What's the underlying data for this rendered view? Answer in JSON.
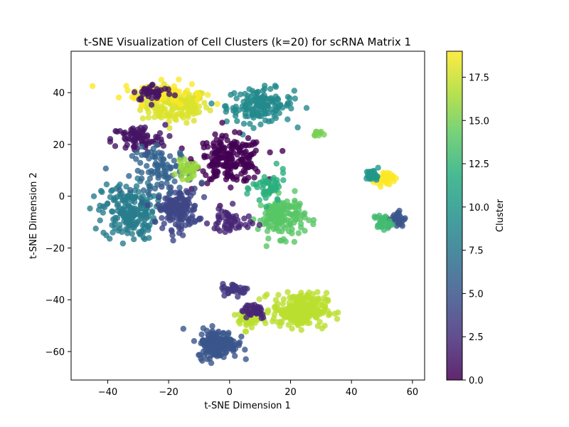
{
  "chart_data": {
    "type": "scatter",
    "title": "t-SNE Visualization of Cell Clusters (k=20) for scRNA Matrix 1",
    "xlabel": "t-SNE Dimension 1",
    "ylabel": "t-SNE Dimension 2",
    "xlim": [
      -52,
      64
    ],
    "ylim": [
      -71,
      56
    ],
    "xticks": [
      -40,
      -20,
      0,
      20,
      40,
      60
    ],
    "yticks": [
      -60,
      -40,
      -20,
      0,
      20,
      40
    ],
    "xtick_labels": [
      "−40",
      "−20",
      "0",
      "20",
      "40",
      "60"
    ],
    "ytick_labels": [
      "−60",
      "−40",
      "−20",
      "0",
      "20",
      "40"
    ],
    "grid": false,
    "colormap": "viridis",
    "marker_alpha": 0.8,
    "colorbar": {
      "label": "Cluster",
      "range": [
        0,
        19
      ],
      "ticks": [
        0,
        2.5,
        5,
        7.5,
        10,
        12.5,
        15,
        17.5
      ],
      "tick_labels": [
        "0.0",
        "2.5",
        "5.0",
        "7.5",
        "10.0",
        "12.5",
        "15.0",
        "17.5"
      ]
    },
    "clusters": [
      {
        "cluster": 18,
        "center": [
          -18,
          35
        ],
        "spread": [
          10,
          6
        ],
        "n": 150
      },
      {
        "cluster": 19,
        "center": [
          -22,
          40
        ],
        "spread": [
          12,
          4
        ],
        "n": 60
      },
      {
        "cluster": 9,
        "center": [
          10,
          35
        ],
        "spread": [
          10,
          6
        ],
        "n": 150
      },
      {
        "cluster": 0,
        "center": [
          0,
          14
        ],
        "spread": [
          10,
          8
        ],
        "n": 200
      },
      {
        "cluster": 1,
        "center": [
          -30,
          22
        ],
        "spread": [
          8,
          5
        ],
        "n": 80
      },
      {
        "cluster": 1,
        "center": [
          -25,
          40
        ],
        "spread": [
          6,
          3
        ],
        "n": 40
      },
      {
        "cluster": 8,
        "center": [
          -33,
          -6
        ],
        "spread": [
          8,
          10
        ],
        "n": 200
      },
      {
        "cluster": 4,
        "center": [
          -17,
          -5
        ],
        "spread": [
          6,
          7
        ],
        "n": 150
      },
      {
        "cluster": 6,
        "center": [
          -22,
          10
        ],
        "spread": [
          9,
          8
        ],
        "n": 90
      },
      {
        "cluster": 14,
        "center": [
          17,
          -8
        ],
        "spread": [
          7,
          7
        ],
        "n": 150
      },
      {
        "cluster": 12,
        "center": [
          13,
          3
        ],
        "spread": [
          5,
          6
        ],
        "n": 50
      },
      {
        "cluster": 2,
        "center": [
          0,
          -10
        ],
        "spread": [
          6,
          5
        ],
        "n": 50
      },
      {
        "cluster": 16,
        "center": [
          -14,
          10
        ],
        "spread": [
          3,
          3
        ],
        "n": 30
      },
      {
        "cluster": 17,
        "center": [
          23,
          -44
        ],
        "spread": [
          8,
          6
        ],
        "n": 250
      },
      {
        "cluster": 17,
        "center": [
          6,
          -47
        ],
        "spread": [
          3,
          4
        ],
        "n": 40
      },
      {
        "cluster": 2,
        "center": [
          8,
          -44
        ],
        "spread": [
          4,
          3
        ],
        "n": 40
      },
      {
        "cluster": 3,
        "center": [
          2,
          -36
        ],
        "spread": [
          4,
          2
        ],
        "n": 40
      },
      {
        "cluster": 5,
        "center": [
          -4,
          -57
        ],
        "spread": [
          6,
          5
        ],
        "n": 180
      },
      {
        "cluster": 19,
        "center": [
          51,
          7
        ],
        "spread": [
          2.5,
          2
        ],
        "n": 40
      },
      {
        "cluster": 10,
        "center": [
          47,
          8
        ],
        "spread": [
          2,
          2
        ],
        "n": 35
      },
      {
        "cluster": 5,
        "center": [
          55,
          -9
        ],
        "spread": [
          2.5,
          3
        ],
        "n": 30
      },
      {
        "cluster": 13,
        "center": [
          50,
          -10
        ],
        "spread": [
          2.5,
          3
        ],
        "n": 30
      },
      {
        "cluster": 15,
        "center": [
          29,
          24
        ],
        "spread": [
          2,
          1
        ],
        "n": 10
      }
    ]
  }
}
